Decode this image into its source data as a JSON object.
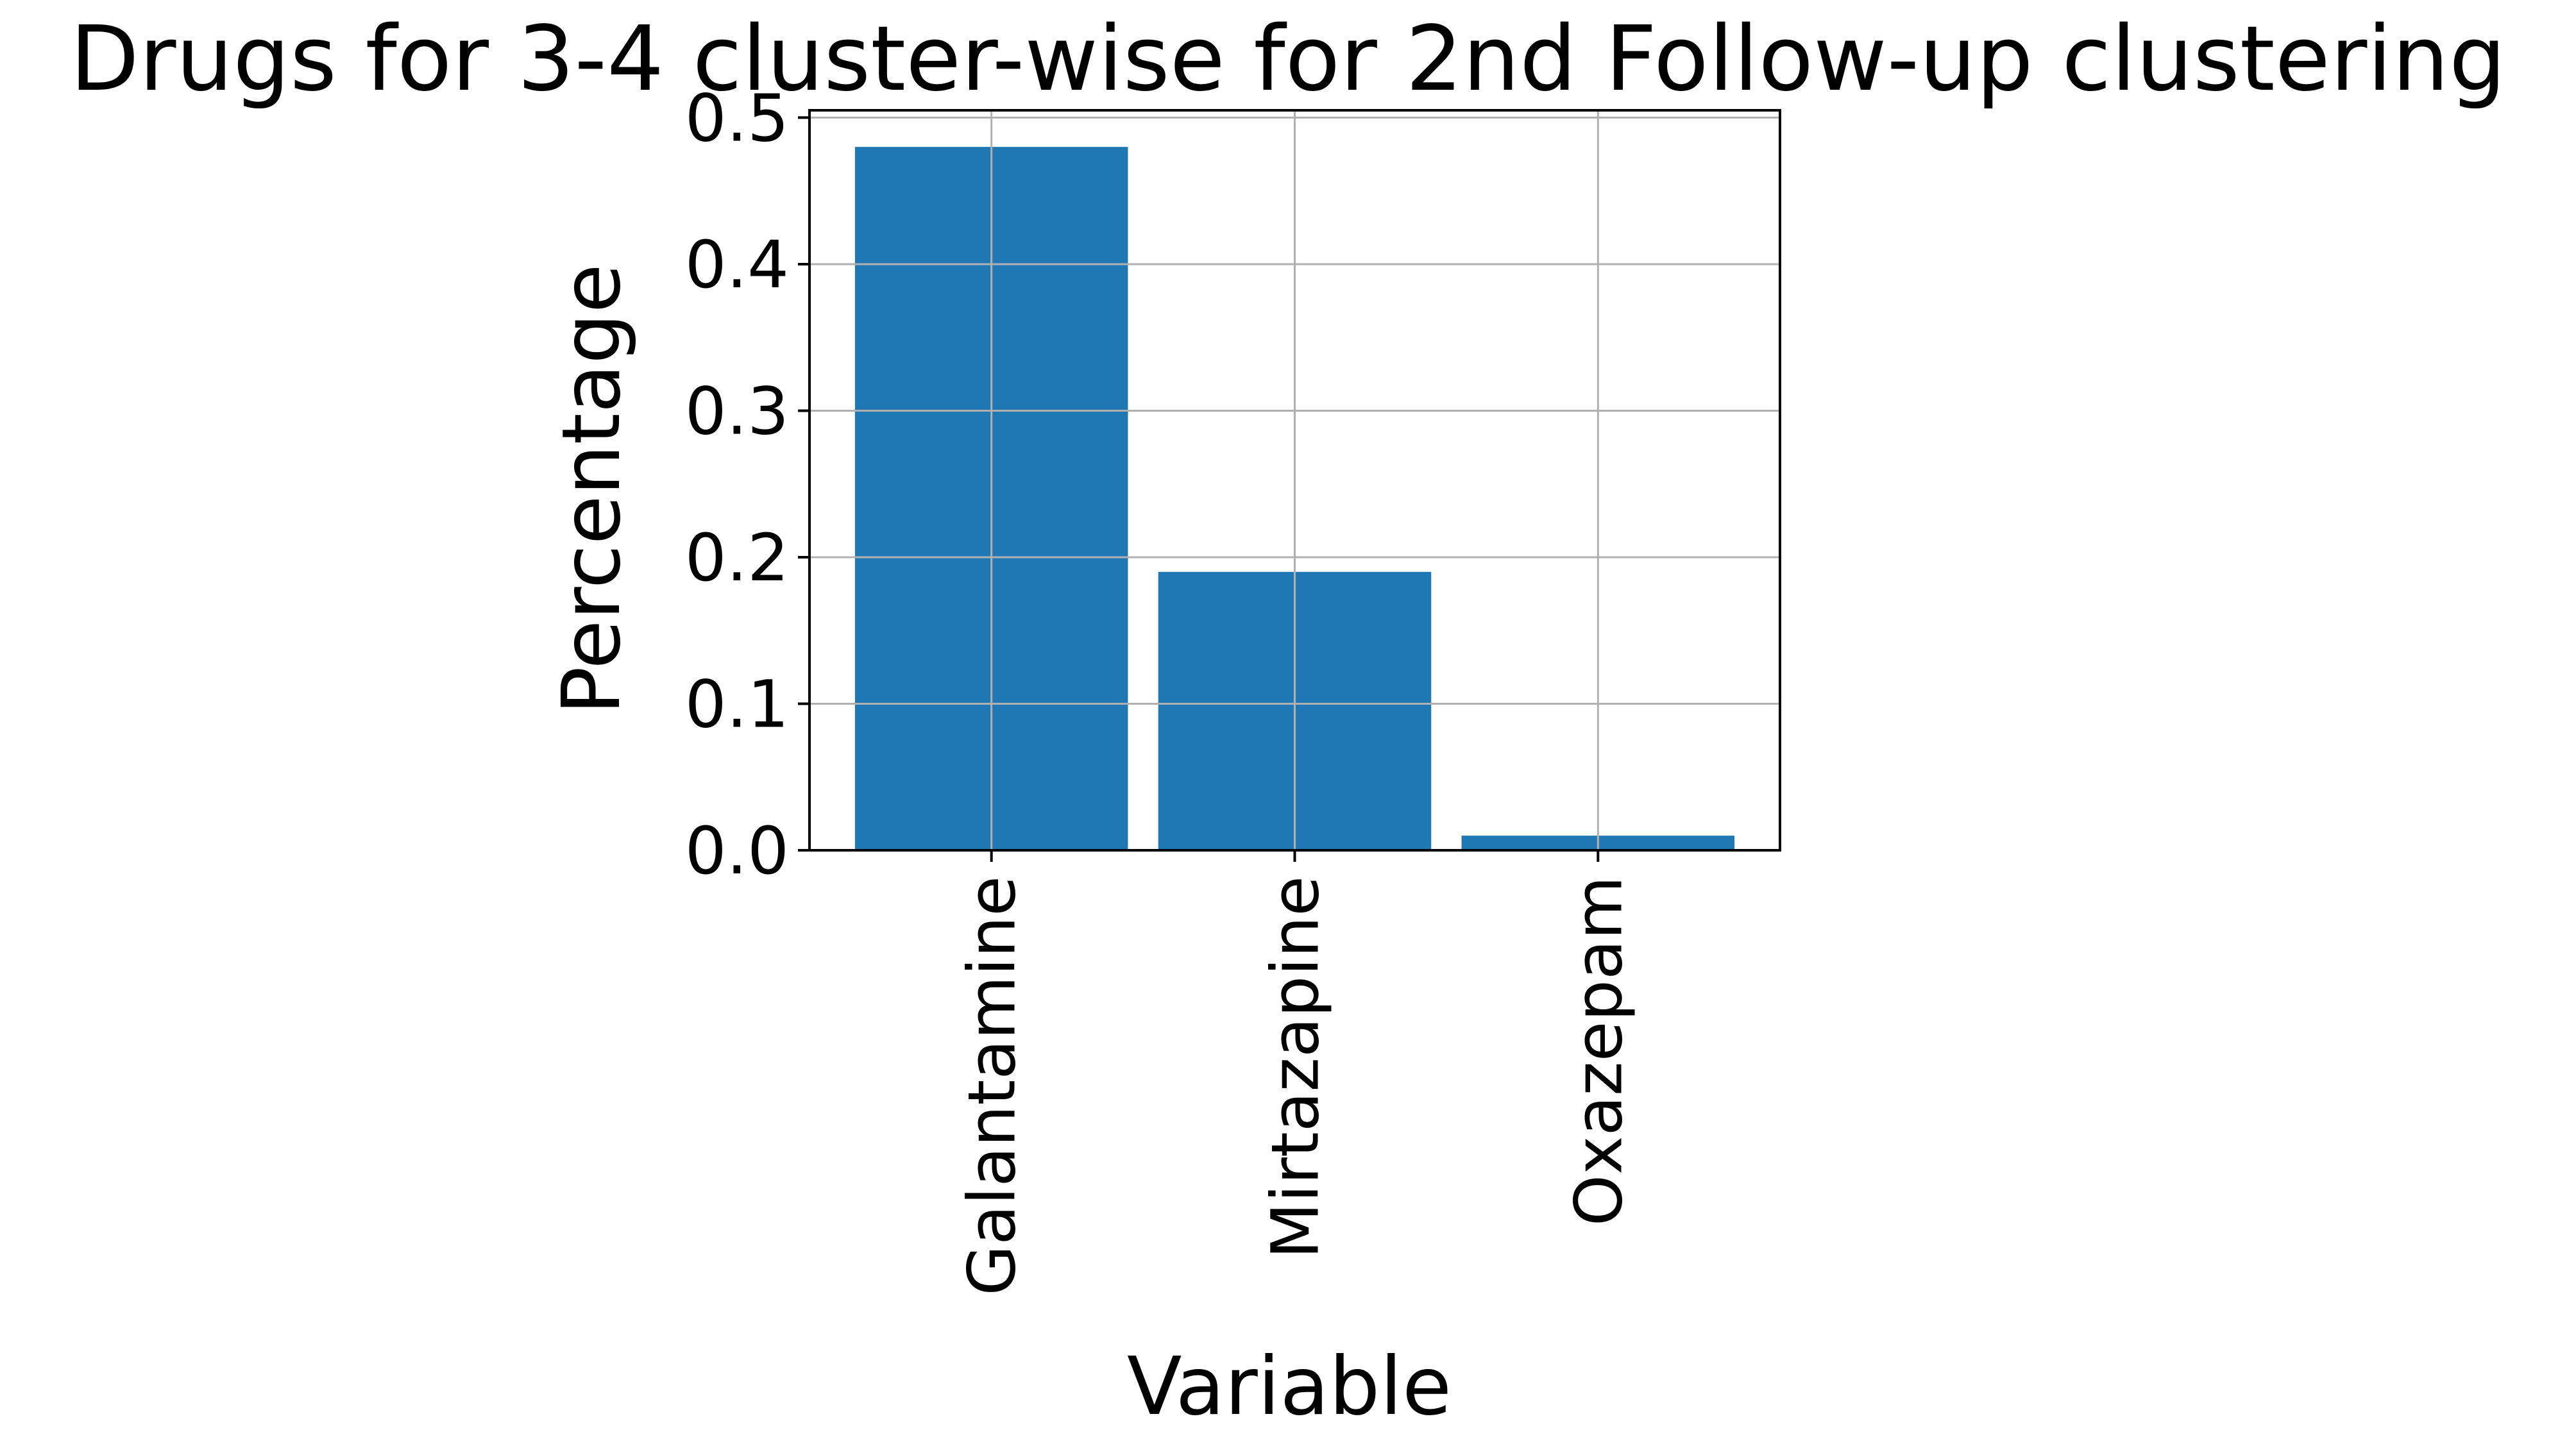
{
  "chart_data": {
    "type": "bar",
    "title": "Drugs for 3-4 cluster-wise for 2nd Follow-up clustering",
    "xlabel": "Variable",
    "ylabel": "Percentage",
    "categories": [
      "Galantamine",
      "Mirtazapine",
      "Oxazepam"
    ],
    "values": [
      0.48,
      0.19,
      0.01
    ],
    "ylim": [
      0,
      0.505
    ],
    "yticks": [
      0.0,
      0.1,
      0.2,
      0.3,
      0.4,
      0.5
    ],
    "ytick_labels": [
      "0.0",
      "0.1",
      "0.2",
      "0.3",
      "0.4",
      "0.5"
    ],
    "x_tick_rotation": "vertical",
    "grid": true,
    "legend": "none",
    "bar_color": "#1f77b4"
  }
}
